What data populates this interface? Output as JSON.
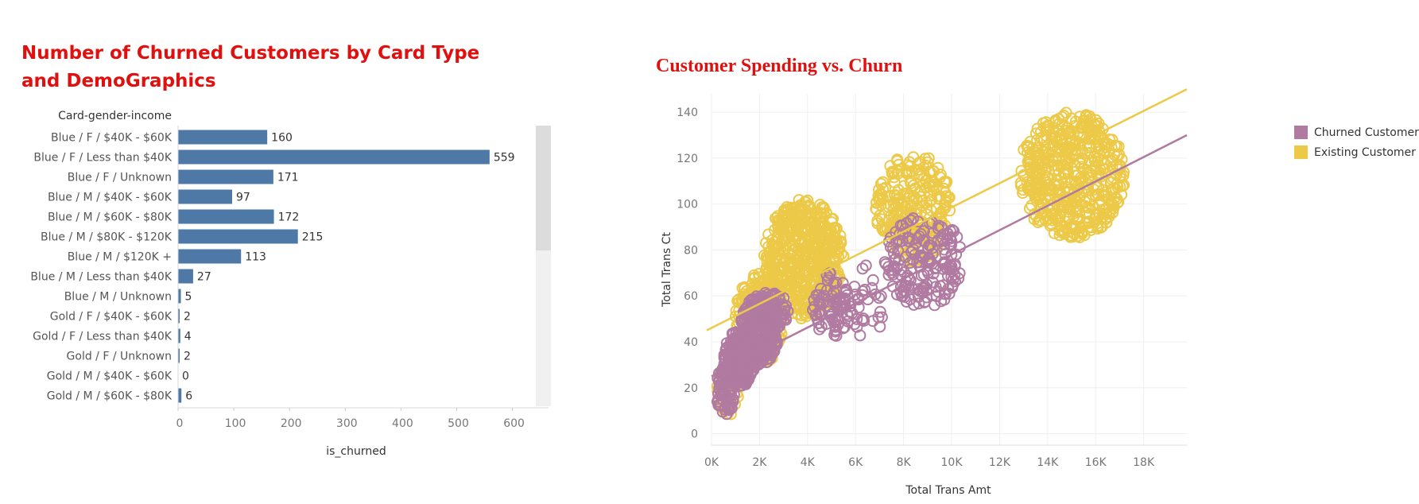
{
  "colors": {
    "title": "#e0100e",
    "bar": "#4e79a7",
    "churned": "#b07aa1",
    "existing": "#edc948",
    "scrollbar_track": "#f0f0f0",
    "scrollbar_thumb": "#dcdcdc"
  },
  "left_chart": {
    "title": "Number of Churned Customers by Card Type and DemoGraphics",
    "row_header": "Card-gender-income"
  },
  "right_chart": {
    "title": "Customer Spending vs. Churn"
  },
  "legend": {
    "items": [
      {
        "label": "Churned Customer",
        "color": "#b07aa1"
      },
      {
        "label": "Existing Customer",
        "color": "#edc948"
      }
    ]
  },
  "chart_data": [
    {
      "type": "bar",
      "orientation": "horizontal",
      "title": "Number of Churned Customers by Card Type and DemoGraphics",
      "row_header": "Card-gender-income",
      "xlabel": "is_churned",
      "ylabel": "",
      "xlim": [
        0,
        650
      ],
      "xticks": [
        0,
        100,
        200,
        300,
        400,
        500,
        600
      ],
      "categories": [
        "Blue / F / $40K - $60K",
        "Blue / F / Less than $40K",
        "Blue / F / Unknown",
        "Blue / M / $40K - $60K",
        "Blue / M / $60K - $80K",
        "Blue / M / $80K - $120K",
        "Blue / M / $120K +",
        "Blue / M / Less than $40K",
        "Blue / M / Unknown",
        "Gold / F / $40K - $60K",
        "Gold / F / Less than $40K",
        "Gold / F / Unknown",
        "Gold / M / $40K - $60K",
        "Gold / M / $60K - $80K"
      ],
      "values": [
        160,
        559,
        171,
        97,
        172,
        215,
        113,
        27,
        5,
        2,
        4,
        2,
        0,
        6
      ],
      "data_labels": true,
      "scrollbar": true
    },
    {
      "type": "scatter",
      "title": "Customer Spending vs. Churn",
      "xlabel": "Total Trans Amt",
      "ylabel": "Total Trans Ct",
      "xlim": [
        0,
        19800
      ],
      "ylim": [
        -5,
        148
      ],
      "xticks": [
        0,
        2000,
        4000,
        6000,
        8000,
        10000,
        12000,
        14000,
        16000,
        18000
      ],
      "xtick_labels": [
        "0K",
        "2K",
        "4K",
        "6K",
        "8K",
        "10K",
        "12K",
        "14K",
        "16K",
        "18K"
      ],
      "yticks": [
        0,
        20,
        40,
        60,
        80,
        100,
        120,
        140
      ],
      "grid": true,
      "marker": "open-circle",
      "legend_position": "right",
      "series": [
        {
          "name": "Churned Customer",
          "color": "#b07aa1",
          "trend_line": [
            [
              0,
              25
            ],
            [
              19800,
              130
            ]
          ],
          "clusters": [
            {
              "x": [
                200,
                1000
              ],
              "y": [
                8,
                30
              ],
              "n": 80
            },
            {
              "x": [
                500,
                1800
              ],
              "y": [
                20,
                45
              ],
              "n": 220
            },
            {
              "x": [
                1200,
                2800
              ],
              "y": [
                30,
                60
              ],
              "n": 260
            },
            {
              "x": [
                1600,
                3200
              ],
              "y": [
                45,
                62
              ],
              "n": 90
            },
            {
              "x": [
                4200,
                5800
              ],
              "y": [
                42,
                70
              ],
              "n": 80
            },
            {
              "x": [
                5800,
                7200
              ],
              "y": [
                40,
                75
              ],
              "n": 30
            },
            {
              "x": [
                7200,
                10500
              ],
              "y": [
                55,
                95
              ],
              "n": 180
            }
          ]
        },
        {
          "name": "Existing Customer",
          "color": "#edc948",
          "trend_line": [
            [
              -200,
              45
            ],
            [
              19800,
              150
            ]
          ],
          "clusters": [
            {
              "x": [
                200,
                1200
              ],
              "y": [
                8,
                30
              ],
              "n": 50
            },
            {
              "x": [
                1000,
                3000
              ],
              "y": [
                30,
                70
              ],
              "n": 280
            },
            {
              "x": [
                2200,
                5500
              ],
              "y": [
                50,
                102
              ],
              "n": 550
            },
            {
              "x": [
                6800,
                10000
              ],
              "y": [
                75,
                122
              ],
              "n": 260
            },
            {
              "x": [
                12800,
                17200
              ],
              "y": [
                85,
                140
              ],
              "n": 500
            }
          ]
        }
      ]
    }
  ]
}
